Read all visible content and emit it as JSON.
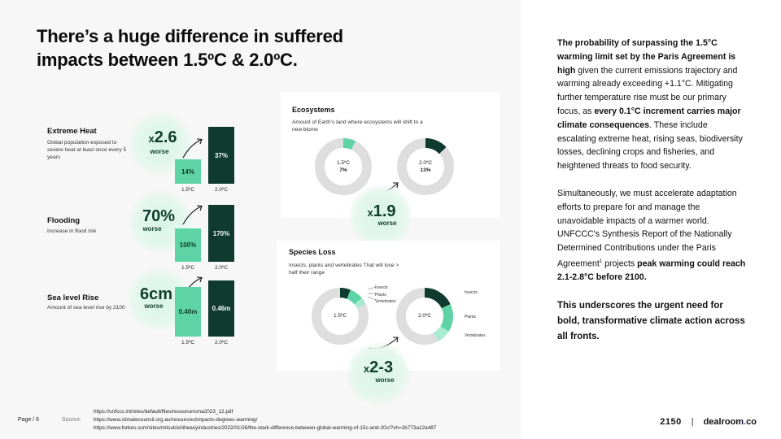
{
  "title": "There’s a huge difference in suffered impacts between 1.5ºC & 2.0ºC.",
  "metrics": [
    {
      "title": "Extreme Heat",
      "desc": "Global population exposed to severe heat at least once every 5 years",
      "delta": "2.6",
      "delta_prefix": "x",
      "delta_label": "worse",
      "low_value": "14%",
      "high_value": "37%",
      "low_label": "1.5ºC",
      "high_label": "2.0ºC"
    },
    {
      "title": "Flooding",
      "desc": "Increase in flood risk",
      "delta": "70%",
      "delta_prefix": "",
      "delta_label": "worse",
      "low_value": "100%",
      "high_value": "170%",
      "low_label": "1.5ºC",
      "high_label": "2.0ºC"
    },
    {
      "title": "Sea level Rise",
      "desc": "Amount of sea level rise by 2100",
      "delta": "6cm",
      "delta_prefix": "",
      "delta_label": "worse",
      "low_value": "0.40m",
      "high_value": "0.46m",
      "low_label": "1.5ºC",
      "high_label": "2.0ºC"
    }
  ],
  "ecosystems": {
    "title": "Ecosystems",
    "desc": "Amount of Earth’s land where ecosystems will shift to a new biome",
    "low": {
      "temp": "1.5ºC",
      "value": "7%",
      "fraction": 0.07
    },
    "high": {
      "temp": "2.0ºC",
      "value": "13%",
      "fraction": 0.13
    },
    "delta_prefix": "x",
    "delta": "1.9",
    "delta_label": "worse"
  },
  "species": {
    "title": "Species Loss",
    "desc": "Insects, plants and vertebrates That will lose > half their range",
    "low": {
      "temp": "1.5ºC",
      "segments": [
        {
          "name": "Insects",
          "fraction": 0.06
        },
        {
          "name": "Plants",
          "fraction": 0.08
        },
        {
          "name": "Vertebrates",
          "fraction": 0.04
        }
      ]
    },
    "high": {
      "temp": "2.0ºC",
      "segments": [
        {
          "name": "Insects",
          "fraction": 0.18
        },
        {
          "name": "Plants",
          "fraction": 0.16
        },
        {
          "name": "Vertebrates",
          "fraction": 0.08
        }
      ]
    },
    "delta_prefix": "x",
    "delta": "2-3",
    "delta_label": "worse"
  },
  "colors": {
    "dark": "#0e3b2d",
    "mid": "#2f9b6e",
    "light": "#5ed4a6",
    "pale": "#a8ecd0",
    "ring": "#dedede"
  },
  "sources": [
    "https://unfccc.int/sites/default/files/resource/cma2023_12.pdf",
    "https://www.climatecouncil.org.au/resources/impacts-degrees-warming/",
    "https://www.forbes.com/sites/mitsubishiheavyindustries/2022/01/26/the-stark-difference-between-global-warming-of-15c-and-20c/?sh=2b773a12a487"
  ],
  "page_label": "Page / 6",
  "source_label": "Source:",
  "right": {
    "p1_bold": "The probability of surpassing the 1.5°C warming limit set by the Paris Agreement is high",
    "p1_a": " given the current emissions trajectory and warming already exceeding +1.1°C. Mitigating further temperature rise must be our primary focus, as ",
    "p1_bold2": "every 0.1°C increment carries major climate consequences",
    "p1_b": ". These include escalating extreme heat, rising seas, biodiversity losses, declining crops and fisheries, and heightened threats to food security.",
    "p2_a": "Simultaneously, we must accelerate adaptation efforts to prepare for and manage the unavoidable impacts of a warmer world. UNFCCC's Synthesis Report of the Nationally Determined Contributions under the Paris Agreement",
    "p2_sup": "1",
    "p2_b": " projects ",
    "p2_bold": "peak warming could reach 2.1-2.8°C before 2100.",
    "p3": "This underscores the urgent need for bold, transformative climate action across all fronts."
  },
  "footer": {
    "logo1": "2150",
    "sep": "|",
    "logo2": "dealroom",
    "logo2_dot": ".",
    "logo2_end": "co"
  }
}
